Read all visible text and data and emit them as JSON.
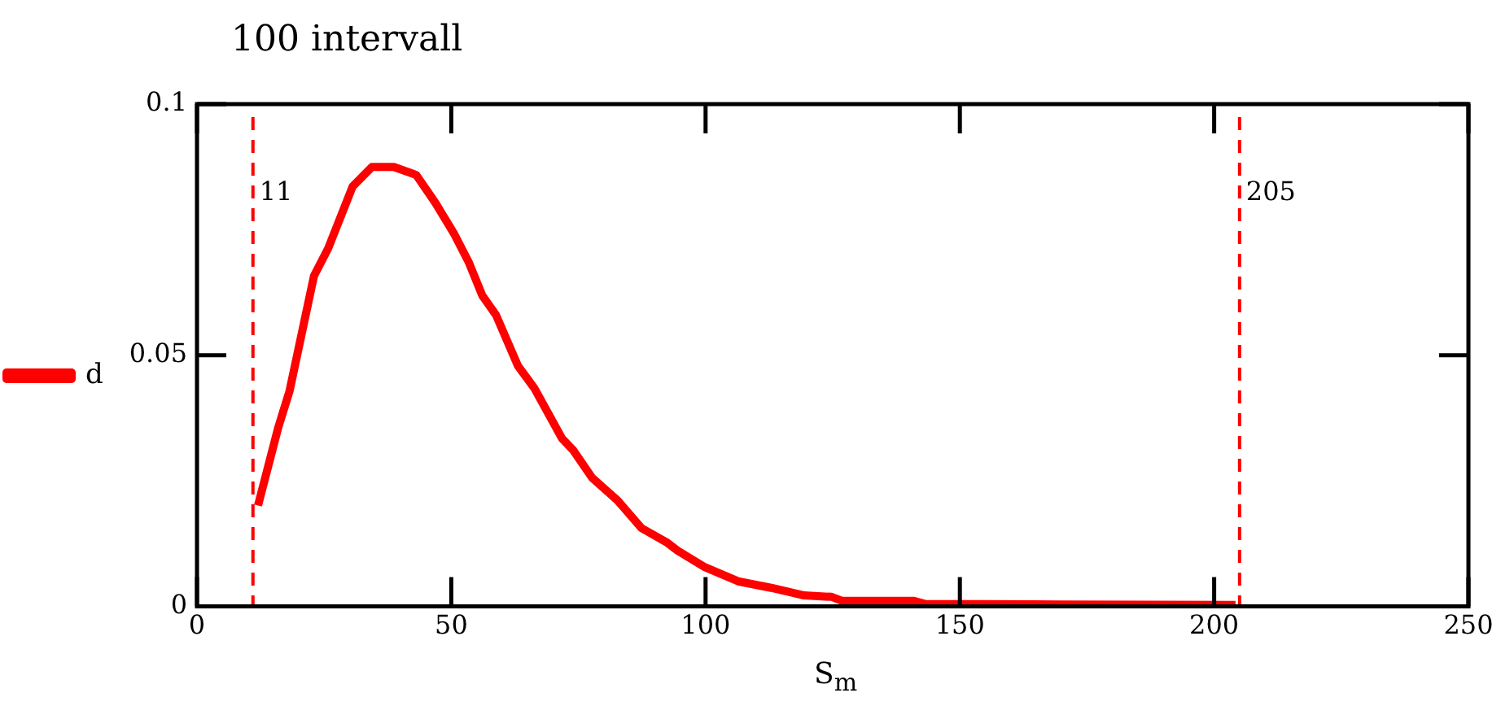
{
  "chart_data": {
    "type": "line",
    "title": "100 intervall",
    "xlabel": "S$_{m}$",
    "series": [
      {
        "name": "d",
        "color": "#ff0000",
        "x": [
          12,
          16,
          18.2,
          23,
          25.8,
          30.6,
          34.4,
          38.7,
          43.1,
          46.9,
          50.6,
          53.4,
          56.1,
          58.8,
          63.1,
          66.3,
          71.8,
          73.9,
          77.7,
          82.6,
          87.4,
          92.3,
          94.5,
          99.9,
          106.4,
          112.9,
          119.4,
          124.8,
          126.9,
          141,
          143.2,
          170,
          204.2
        ],
        "values": [
          0.0201,
          0.0357,
          0.0429,
          0.0658,
          0.0713,
          0.0836,
          0.0875,
          0.0875,
          0.0859,
          0.0803,
          0.0741,
          0.0686,
          0.0619,
          0.058,
          0.0479,
          0.0435,
          0.0334,
          0.0312,
          0.0256,
          0.0212,
          0.0156,
          0.0128,
          0.0111,
          0.0078,
          0.005,
          0.0037,
          0.0022,
          0.0019,
          0.0011,
          0.0011,
          0.0005,
          0.0004,
          0.0003
        ]
      }
    ],
    "xlim": [
      0,
      250
    ],
    "xticks": [
      0,
      50,
      100,
      150,
      200,
      250
    ],
    "ylim": [
      0,
      0.1
    ],
    "yticks": [
      0,
      0.05,
      0.1
    ],
    "ref_lines": [
      {
        "axis": "x",
        "value": 11,
        "label": "11",
        "color": "#ff0000",
        "line_style": "dashed"
      },
      {
        "axis": "x",
        "value": 205,
        "label": "205",
        "color": "#ff0000",
        "line_style": "dashed"
      }
    ],
    "grid": false,
    "legend": "left",
    "line_style": "solid",
    "marker": "none"
  }
}
